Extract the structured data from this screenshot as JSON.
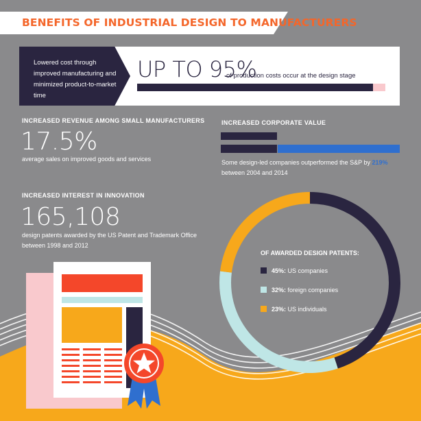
{
  "title": "BENEFITS OF INDUSTRIAL DESIGN TO MANUFACTURERS",
  "cost": {
    "intro": "Lowered cost through improved manufacturing and minimized product-to-market time",
    "headline": "UP TO 95%",
    "suffix": "of production costs occur at the design stage",
    "percent": 95
  },
  "revenue": {
    "heading": "INCREASED REVENUE AMONG SMALL MANUFACTURERS",
    "value": "17.5%",
    "description": "average sales on improved goods and services"
  },
  "corporate": {
    "heading": "INCREASED CORPORATE VALUE",
    "desc_before": "Some design-led companies outperformed the S&P by",
    "highlight": "219%",
    "desc_after": "between 2004 and 2014",
    "baseline_share": 0.313,
    "outperform_share": 1.0
  },
  "innovation": {
    "heading": "INCREASED INTEREST IN INNOVATION",
    "value": "165,108",
    "description": "design patents awarded by the US Patent and Trademark Office between 1998 and 2012"
  },
  "patents": {
    "label": "OF AWARDED DESIGN PATENTS:",
    "items": [
      {
        "pct": "45%:",
        "text": "US companies",
        "value": 45,
        "color": "#2a2540"
      },
      {
        "pct": "32%:",
        "text": "foreign companies",
        "value": 32,
        "color": "#bfe6e6"
      },
      {
        "pct": "23%:",
        "text": "US individuals",
        "value": 23,
        "color": "#f7a81b"
      }
    ]
  },
  "colors": {
    "background": "#8a8a8c",
    "accent_orange": "#f4662a",
    "navy": "#2a2540",
    "blue": "#2f6fcf",
    "yellow": "#f7a81b"
  },
  "icons": [
    "patent-document-icon",
    "award-ribbon-icon"
  ]
}
